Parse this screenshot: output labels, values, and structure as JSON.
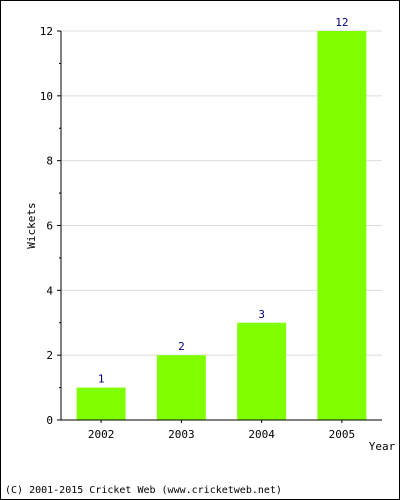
{
  "chart_data": {
    "type": "bar",
    "categories": [
      "2002",
      "2003",
      "2004",
      "2005"
    ],
    "values": [
      1,
      2,
      3,
      12
    ],
    "data_labels": [
      "1",
      "2",
      "3",
      "12"
    ],
    "xlabel": "Year",
    "ylabel": "Wickets",
    "ylim": [
      0,
      12
    ],
    "yticks": [
      0,
      2,
      4,
      6,
      8,
      10,
      12
    ],
    "grid": true,
    "bar_color": "#80ff00",
    "label_color": "#000080",
    "grid_color": "#dddddd"
  },
  "footer": {
    "copyright": "(C) 2001-2015 Cricket Web (www.cricketweb.net)"
  }
}
